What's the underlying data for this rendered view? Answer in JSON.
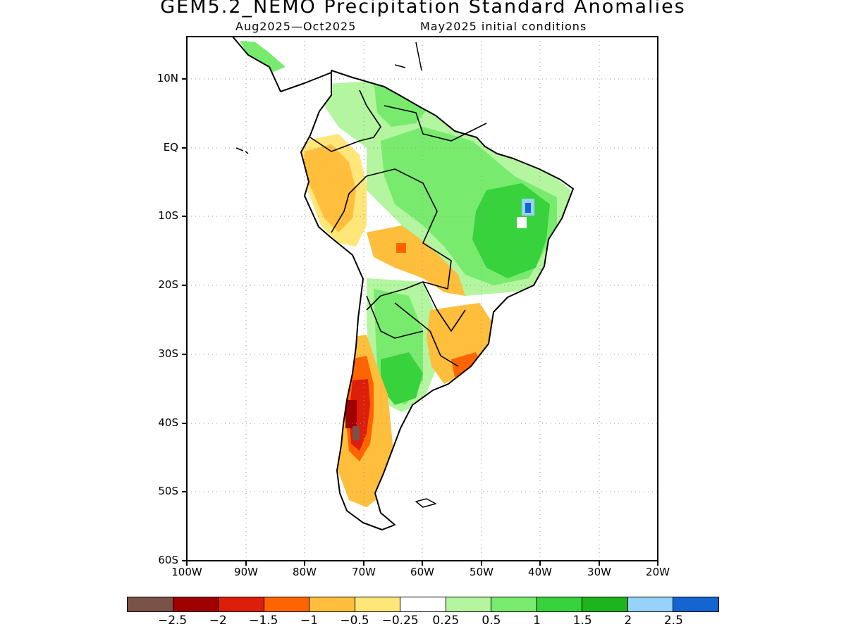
{
  "title": "GEM5.2_NEMO Precipitation Standard Anomalies",
  "subtitle_period": "Aug2025—Oct2025",
  "subtitle_init": "May2025 initial conditions",
  "y_axis_labels": [
    "10N",
    "EQ",
    "10S",
    "20S",
    "30S",
    "40S",
    "50S",
    "60S"
  ],
  "x_axis_labels": [
    "100W",
    "90W",
    "80W",
    "70W",
    "60W",
    "50W",
    "40W",
    "30W",
    "20W"
  ],
  "colorbar": {
    "colors": [
      "#7a5248",
      "#a00000",
      "#dc1e0a",
      "#ff6400",
      "#ffbe3c",
      "#ffe678",
      "#ffffff",
      "#b4f5a0",
      "#78eb6e",
      "#37d23c",
      "#1eb41e",
      "#96d2fa",
      "#1464d2"
    ],
    "labels": [
      "−2.5",
      "−2",
      "−1.5",
      "−1",
      "−0.5",
      "−0.25",
      "0.25",
      "0.5",
      "1",
      "1.5",
      "2",
      "2.5"
    ]
  },
  "map_data": {
    "projection": "lat-lon",
    "lon_range": [
      -100,
      -20
    ],
    "lat_range": [
      -60,
      16
    ],
    "grid_lon_step": 10,
    "grid_lat_step": 10,
    "anomaly_regions": [
      {
        "name": "Northern Peru/Ecuador",
        "category": "-1 to -0.5"
      },
      {
        "name": "Amazon/Central Brazil",
        "category": "0.5 to 1"
      },
      {
        "name": "Northeast Brazil",
        "category": "1 to 1.5"
      },
      {
        "name": "Bahia interior",
        "category": "2 to 2.5"
      },
      {
        "name": "Bolivia/Mato Grosso band",
        "category": "-1 to -0.5"
      },
      {
        "name": "Northern/Central Argentina",
        "category": "0.5 to 1"
      },
      {
        "name": "Southern Brazil/Uruguay",
        "category": "-1 to -0.5"
      },
      {
        "name": "Central/Southern Chile",
        "category": "-2 to -1.5"
      },
      {
        "name": "Patagonia",
        "category": "-1 to -0.5"
      }
    ]
  }
}
